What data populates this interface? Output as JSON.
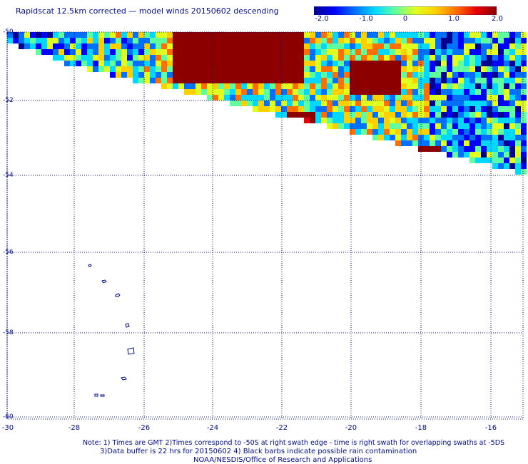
{
  "title": "Rapidscat 12.5km corrected — model winds 20150602 descending",
  "colorbar": {
    "labels": [
      "-2.0",
      "-1.0",
      "0",
      "1.0",
      "2.0"
    ],
    "min": -2.0,
    "max": 2.0,
    "colors": [
      "#00008c",
      "#0000ff",
      "#0070ff",
      "#00d8ff",
      "#60ffa0",
      "#e0ff20",
      "#ffd000",
      "#ff7000",
      "#e80000",
      "#8c0000"
    ]
  },
  "axes": {
    "y_labels": [
      "-50",
      "-52",
      "-54",
      "-56",
      "-58",
      "-60"
    ],
    "x_labels": [
      "-30",
      "-28",
      "-26",
      "-24",
      "-22",
      "-20",
      "-18",
      "-16"
    ],
    "lat_range": [
      -50,
      -60
    ],
    "lon_range": [
      -30,
      -15.2
    ],
    "grid": "dotted"
  },
  "islands_color": "#000c8a",
  "notes": {
    "line1": "Note: 1) Times are GMT 2)Times correspond to -50S at right swath edge - time is right swath for overlapping swaths at -5DS",
    "line2": "3)Data buffer is 22 hrs for 20150602 4) Black barbs indicate possible rain contamination",
    "line3": "NOAA/NESDIS/Office of Research and Applications"
  }
}
